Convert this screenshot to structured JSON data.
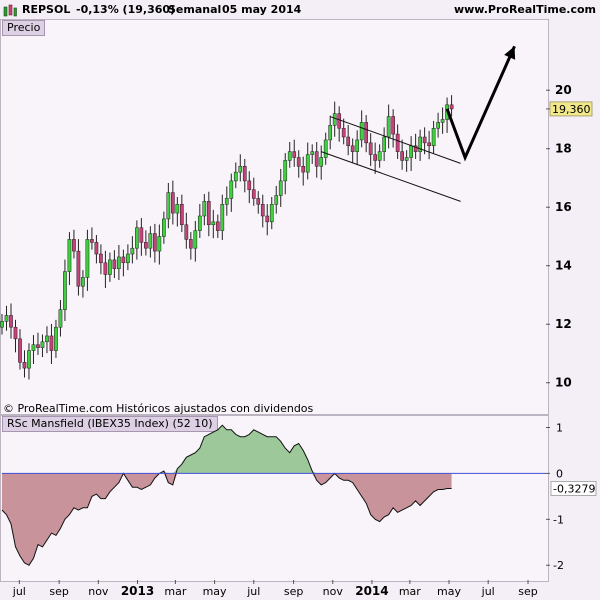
{
  "header": {
    "symbol": "REPSOL",
    "change": "-0,13% (19,360)",
    "period": "Semanal",
    "date": "05 may 2014",
    "site": "www.ProRealTime.com"
  },
  "price_panel": {
    "label": "Precio",
    "last_value": "19,360"
  },
  "indicator_panel": {
    "label": "RSc Mansfield (IBEX35 Index) (52 10)",
    "last_value": "-0,3279"
  },
  "copyright": "© ProRealTime.com  Históricos ajustados con dividendos",
  "colors": {
    "up": "#3fcf3f",
    "down": "#c6427a",
    "indicator_pos": "#9dc89a",
    "indicator_neg": "#c8939b",
    "zero_line": "#3f4fd8"
  },
  "chart_data": [
    {
      "type": "candlestick",
      "title": "REPSOL",
      "interval": "weekly",
      "y_ticks": [
        10,
        12,
        14,
        16,
        18,
        20
      ],
      "ylim": [
        9.0,
        22.4
      ],
      "x_tick_labels": [
        "jul",
        "sep",
        "nov",
        "2013",
        "mar",
        "may",
        "jul",
        "sep",
        "nov",
        "2014",
        "mar",
        "may",
        "jul",
        "sep"
      ],
      "x_start": "2012-06-04",
      "x_end": "2014-09-29",
      "closes": [
        12.1,
        12.3,
        11.9,
        11.5,
        10.7,
        10.5,
        11.1,
        11.3,
        11.2,
        11.4,
        11.6,
        11.1,
        11.9,
        12.5,
        13.8,
        14.9,
        14.5,
        13.3,
        13.6,
        14.9,
        14.8,
        14.4,
        14.1,
        13.7,
        14.2,
        13.9,
        14.3,
        14.1,
        14.4,
        14.6,
        15.3,
        14.8,
        14.6,
        15.1,
        14.5,
        15.0,
        15.6,
        16.5,
        15.8,
        16.1,
        15.4,
        14.9,
        14.6,
        15.2,
        15.7,
        16.2,
        15.4,
        15.5,
        15.2,
        16.1,
        16.3,
        16.9,
        17.2,
        17.4,
        16.9,
        16.6,
        16.3,
        16.1,
        15.7,
        15.5,
        16.1,
        16.4,
        16.9,
        17.6,
        17.9,
        17.7,
        17.4,
        17.2,
        17.8,
        17.9,
        17.4,
        17.7,
        18.3,
        18.8,
        19.2,
        18.7,
        18.4,
        18.1,
        17.9,
        18.3,
        18.9,
        18.2,
        17.8,
        17.6,
        17.9,
        18.4,
        19.1,
        18.5,
        17.9,
        17.6,
        17.7,
        18.1,
        17.9,
        18.4,
        18.2,
        18.1,
        18.7,
        18.9,
        19.0,
        19.5,
        19.36
      ],
      "projection_arrow": [
        [
          "2014-04-28",
          19.36
        ],
        [
          "2014-05-26",
          17.7
        ],
        [
          "2014-08-11",
          21.5
        ]
      ],
      "channel_lines": [
        {
          "from": [
            "2013-10-14",
            17.9
          ],
          "to": [
            "2014-05-19",
            16.2
          ]
        },
        {
          "from": [
            "2013-10-28",
            19.1
          ],
          "to": [
            "2014-05-19",
            17.5
          ]
        }
      ]
    },
    {
      "type": "area",
      "title": "RSc Mansfield (IBEX35 Index) (52 10)",
      "y_ticks": [
        -2,
        -1,
        0,
        1
      ],
      "ylim": [
        -2.3,
        1.25
      ],
      "zero_line": 0,
      "values": [
        -0.8,
        -0.9,
        -1.1,
        -1.6,
        -1.8,
        -1.95,
        -2.0,
        -1.85,
        -1.55,
        -1.6,
        -1.45,
        -1.3,
        -1.35,
        -1.2,
        -1.0,
        -0.9,
        -0.75,
        -0.8,
        -0.75,
        -0.75,
        -0.5,
        -0.45,
        -0.55,
        -0.55,
        -0.4,
        -0.3,
        -0.2,
        0.0,
        -0.15,
        -0.3,
        -0.3,
        -0.35,
        -0.3,
        -0.25,
        -0.1,
        0.0,
        0.05,
        -0.2,
        -0.25,
        0.1,
        0.2,
        0.35,
        0.4,
        0.45,
        0.55,
        0.8,
        0.85,
        0.9,
        0.95,
        1.05,
        0.95,
        0.95,
        0.85,
        0.8,
        0.8,
        0.85,
        0.95,
        0.9,
        0.85,
        0.8,
        0.8,
        0.8,
        0.7,
        0.55,
        0.45,
        0.6,
        0.65,
        0.5,
        0.3,
        0.05,
        -0.15,
        -0.25,
        -0.2,
        -0.1,
        0.0,
        -0.1,
        -0.15,
        -0.15,
        -0.2,
        -0.35,
        -0.5,
        -0.65,
        -0.9,
        -1.0,
        -1.05,
        -0.95,
        -0.9,
        -0.75,
        -0.85,
        -0.8,
        -0.75,
        -0.7,
        -0.6,
        -0.7,
        -0.6,
        -0.5,
        -0.4,
        -0.35,
        -0.35,
        -0.33,
        -0.3279
      ]
    }
  ]
}
